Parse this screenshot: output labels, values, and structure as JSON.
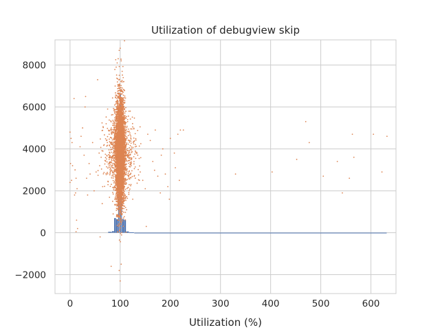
{
  "chart_data": {
    "type": "scatter",
    "title": "Utilization of debugview skip",
    "xlabel": "Utilization (%)",
    "ylabel": "",
    "xlim": [
      -30,
      650
    ],
    "ylim": [
      -2900,
      9200
    ],
    "grid": true,
    "x_ticks": [
      0,
      100,
      200,
      300,
      400,
      500,
      600
    ],
    "y_ticks": [
      -2000,
      0,
      2000,
      4000,
      6000,
      8000
    ],
    "x_tick_labels": [
      "0",
      "100",
      "200",
      "300",
      "400",
      "500",
      "600"
    ],
    "y_tick_labels": [
      "−2000",
      "0",
      "2000",
      "4000",
      "6000",
      "8000"
    ],
    "series": [
      {
        "kind": "histogram",
        "color": "#4c72b0",
        "bins": [
          {
            "x0": 76,
            "x1": 84,
            "count": 45
          },
          {
            "x0": 84,
            "x1": 88,
            "count": 80
          },
          {
            "x0": 88,
            "x1": 92,
            "count": 700
          },
          {
            "x0": 92,
            "x1": 96,
            "count": 650
          },
          {
            "x0": 96,
            "x1": 98,
            "count": 2400
          },
          {
            "x0": 98,
            "x1": 100,
            "count": 5000
          },
          {
            "x0": 100,
            "x1": 102,
            "count": 6600
          },
          {
            "x0": 102,
            "x1": 104,
            "count": 2700
          },
          {
            "x0": 104,
            "x1": 108,
            "count": 650
          },
          {
            "x0": 108,
            "x1": 112,
            "count": 620
          },
          {
            "x0": 112,
            "x1": 118,
            "count": 60
          },
          {
            "x0": 118,
            "x1": 128,
            "count": 20
          },
          {
            "x0": 128,
            "x1": 632,
            "count": 4
          }
        ]
      },
      {
        "kind": "scatter",
        "color": "#dd8452",
        "center_x": 100,
        "center_y": 3800,
        "points": [
          [
            0,
            4800
          ],
          [
            2,
            4500
          ],
          [
            4,
            4300
          ],
          [
            1,
            3300
          ],
          [
            3,
            2500
          ],
          [
            0,
            2400
          ],
          [
            5,
            3200
          ],
          [
            8,
            6400
          ],
          [
            10,
            3000
          ],
          [
            12,
            2600
          ],
          [
            14,
            2100
          ],
          [
            11,
            1900
          ],
          [
            9,
            1800
          ],
          [
            13,
            600
          ],
          [
            15,
            200
          ],
          [
            12,
            50
          ],
          [
            20,
            4100
          ],
          [
            22,
            4600
          ],
          [
            25,
            5000
          ],
          [
            28,
            3700
          ],
          [
            30,
            6000
          ],
          [
            31,
            6500
          ],
          [
            33,
            2600
          ],
          [
            35,
            1800
          ],
          [
            38,
            3300
          ],
          [
            40,
            2800
          ],
          [
            45,
            4300
          ],
          [
            48,
            2000
          ],
          [
            52,
            2900
          ],
          [
            55,
            7300
          ],
          [
            58,
            3800
          ],
          [
            60,
            -200
          ],
          [
            62,
            3600
          ],
          [
            65,
            2200
          ],
          [
            68,
            4200
          ],
          [
            72,
            5200
          ],
          [
            75,
            5900
          ],
          [
            78,
            4700
          ],
          [
            80,
            2900
          ],
          [
            82,
            -1600
          ],
          [
            85,
            1500
          ],
          [
            86,
            900
          ],
          [
            87,
            3300
          ],
          [
            88,
            2800
          ],
          [
            89,
            4600
          ],
          [
            90,
            7000
          ],
          [
            92,
            7900
          ],
          [
            94,
            8100
          ],
          [
            96,
            8300
          ],
          [
            98,
            8700
          ],
          [
            100,
            8800
          ],
          [
            102,
            8200
          ],
          [
            104,
            7700
          ],
          [
            106,
            7400
          ],
          [
            108,
            6800
          ],
          [
            100,
            -2300
          ],
          [
            98,
            -1800
          ],
          [
            102,
            -1500
          ],
          [
            110,
            5200
          ],
          [
            112,
            4800
          ],
          [
            115,
            3600
          ],
          [
            118,
            4400
          ],
          [
            120,
            5800
          ],
          [
            122,
            3200
          ],
          [
            125,
            1600
          ],
          [
            128,
            2700
          ],
          [
            130,
            4100
          ],
          [
            135,
            3700
          ],
          [
            140,
            2900
          ],
          [
            145,
            2500
          ],
          [
            150,
            2100
          ],
          [
            152,
            300
          ],
          [
            155,
            4700
          ],
          [
            160,
            4400
          ],
          [
            165,
            3400
          ],
          [
            170,
            4900
          ],
          [
            175,
            2700
          ],
          [
            180,
            1900
          ],
          [
            182,
            3700
          ],
          [
            185,
            4000
          ],
          [
            190,
            2800
          ],
          [
            195,
            2200
          ],
          [
            198,
            1600
          ],
          [
            200,
            4500
          ],
          [
            208,
            3800
          ],
          [
            210,
            3100
          ],
          [
            215,
            4700
          ],
          [
            218,
            2500
          ],
          [
            220,
            4900
          ],
          [
            226,
            4900
          ],
          [
            330,
            2800
          ],
          [
            403,
            2900
          ],
          [
            452,
            3500
          ],
          [
            470,
            5300
          ],
          [
            477,
            4300
          ],
          [
            505,
            2700
          ],
          [
            533,
            3400
          ],
          [
            543,
            1900
          ],
          [
            557,
            2600
          ],
          [
            563,
            4700
          ],
          [
            566,
            3600
          ],
          [
            605,
            4700
          ],
          [
            622,
            2900
          ],
          [
            632,
            4600
          ]
        ]
      }
    ]
  }
}
